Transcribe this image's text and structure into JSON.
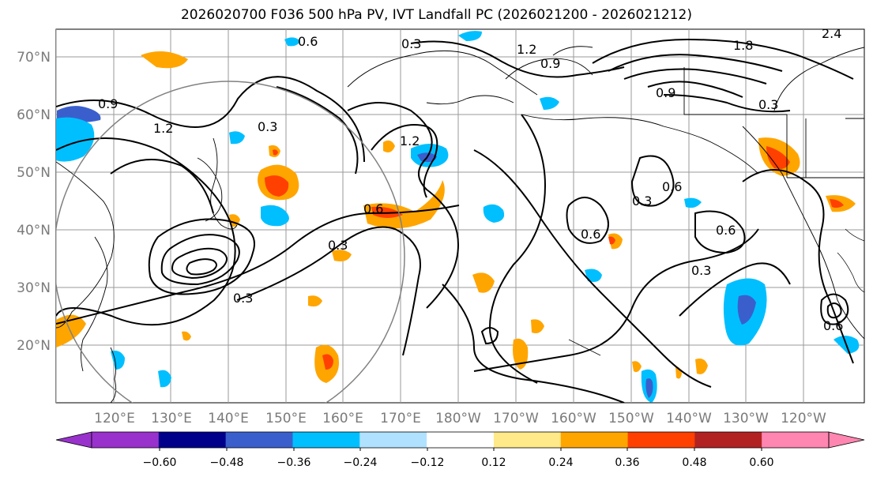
{
  "title": "2026020700 F036 500 hPa PV, IVT Landfall PC (2026021200 - 2026021212)",
  "map": {
    "lat_labels": [
      "70°N",
      "60°N",
      "50°N",
      "40°N",
      "30°N",
      "20°N"
    ],
    "lon_labels": [
      "120°E",
      "130°E",
      "140°E",
      "150°E",
      "160°E",
      "170°E",
      "180°W",
      "170°W",
      "160°W",
      "150°W",
      "140°W",
      "130°W",
      "120°W"
    ],
    "contour_labels": [
      "0.3",
      "0.6",
      "0.9",
      "1.2",
      "1.8",
      "2.4"
    ],
    "contour_color": "#000000",
    "grid_color": "#9a9a9a",
    "circle_color": "#808080"
  },
  "colorbar": {
    "ticks": [
      "−0.60",
      "−0.48",
      "−0.36",
      "−0.24",
      "−0.12",
      "0.12",
      "0.24",
      "0.36",
      "0.48",
      "0.60"
    ],
    "colors": [
      "#9932cc",
      "#00008b",
      "#3a5fcd",
      "#00bfff",
      "#b0e2ff",
      "#ffffff",
      "#ffe989",
      "#ffa500",
      "#ff4000",
      "#b22222",
      "#ff86b0"
    ]
  }
}
